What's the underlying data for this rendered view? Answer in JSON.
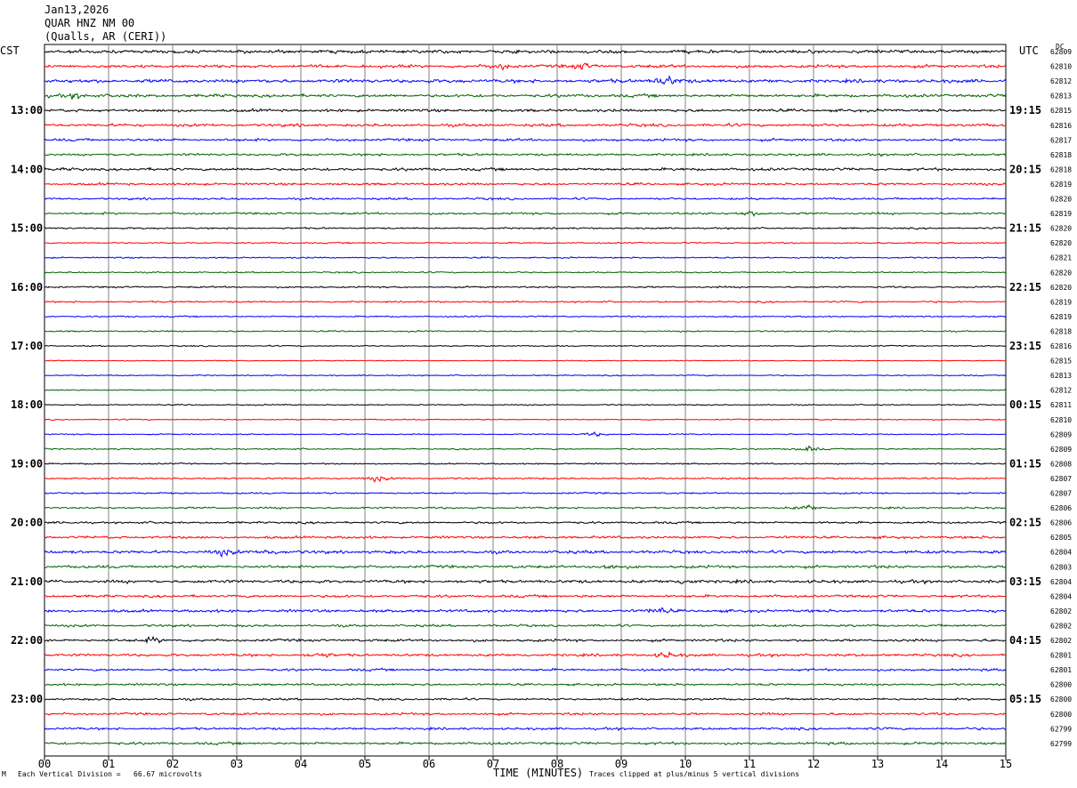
{
  "header": {
    "date": "Jan13,2026",
    "station": "QUAR HNZ NM 00",
    "location": "(Qualls, AR (CERI))"
  },
  "left_axis_title": "CST",
  "right_axis_title": "UTC",
  "dc_header": "DC",
  "footer": {
    "scale_note": "Each Vertical Division =   66.67 microvolts",
    "clip_note": "Traces clipped at plus/minus 5 vertical divisions",
    "corner_mark": "M"
  },
  "colors": {
    "trace_cycle": [
      "#000000",
      "#ff0000",
      "#0000ff",
      "#006400"
    ],
    "grid": "#808080"
  },
  "chart_data": {
    "type": "line",
    "subtype": "helicorder seismogram",
    "xlabel": "TIME (MINUTES)",
    "x_ticks": [
      "00",
      "01",
      "02",
      "03",
      "04",
      "05",
      "06",
      "07",
      "08",
      "09",
      "10",
      "11",
      "12",
      "13",
      "14",
      "15"
    ],
    "xlim": [
      0,
      15
    ],
    "grid": true,
    "left_hour_labels": [
      "13:00",
      "14:00",
      "15:00",
      "16:00",
      "17:00",
      "18:00",
      "19:00",
      "20:00",
      "21:00",
      "22:00",
      "23:00"
    ],
    "right_hour_labels": [
      "19:15",
      "20:15",
      "21:15",
      "22:15",
      "23:15",
      "00:15",
      "01:15",
      "02:15",
      "03:15",
      "04:15",
      "05:15"
    ],
    "dc_offsets": [
      "62809",
      "62810",
      "62812",
      "62813",
      "62815",
      "62816",
      "62817",
      "62818",
      "62818",
      "62819",
      "62820",
      "62819",
      "62820",
      "62820",
      "62821",
      "62820",
      "62820",
      "62819",
      "62819",
      "62818",
      "62816",
      "62815",
      "62813",
      "62812",
      "62811",
      "62810",
      "62809",
      "62809",
      "62808",
      "62807",
      "62807",
      "62806",
      "62806",
      "62805",
      "62804",
      "62803",
      "62804",
      "62804",
      "62802",
      "62802",
      "62802",
      "62801",
      "62801",
      "62800",
      "62800",
      "62800",
      "62799",
      "62799"
    ],
    "trace_count": 48,
    "noise_amplitude": [
      1.4,
      1.3,
      1.5,
      1.3,
      1.2,
      1.2,
      1.1,
      1.0,
      1.2,
      1.0,
      0.9,
      0.9,
      0.7,
      0.6,
      0.6,
      0.6,
      0.7,
      0.7,
      0.6,
      0.6,
      0.5,
      0.4,
      0.5,
      0.5,
      0.5,
      0.5,
      0.5,
      0.6,
      0.6,
      0.7,
      0.7,
      0.8,
      0.9,
      1.1,
      1.3,
      1.2,
      1.3,
      1.1,
      1.2,
      1.0,
      1.1,
      1.1,
      1.0,
      0.9,
      0.9,
      1.0,
      1.0,
      1.1
    ],
    "bursts": [
      {
        "trace": 2,
        "minute": 9.7,
        "amp": 6
      },
      {
        "trace": 1,
        "minute": 7.1,
        "amp": 3
      },
      {
        "trace": 1,
        "minute": 8.4,
        "amp": 3
      },
      {
        "trace": 3,
        "minute": 0.5,
        "amp": 3
      },
      {
        "trace": 11,
        "minute": 11.0,
        "amp": 3
      },
      {
        "trace": 26,
        "minute": 8.6,
        "amp": 2
      },
      {
        "trace": 27,
        "minute": 11.9,
        "amp": 3
      },
      {
        "trace": 29,
        "minute": 5.2,
        "amp": 3
      },
      {
        "trace": 31,
        "minute": 11.9,
        "amp": 3
      },
      {
        "trace": 34,
        "minute": 2.8,
        "amp": 3
      },
      {
        "trace": 34,
        "minute": 3.5,
        "amp": 3
      },
      {
        "trace": 35,
        "minute": 8.8,
        "amp": 3
      },
      {
        "trace": 36,
        "minute": 10.0,
        "amp": 3
      },
      {
        "trace": 38,
        "minute": 9.6,
        "amp": 3
      },
      {
        "trace": 40,
        "minute": 1.7,
        "amp": 3
      },
      {
        "trace": 41,
        "minute": 4.3,
        "amp": 3
      },
      {
        "trace": 41,
        "minute": 9.7,
        "amp": 3
      }
    ]
  }
}
